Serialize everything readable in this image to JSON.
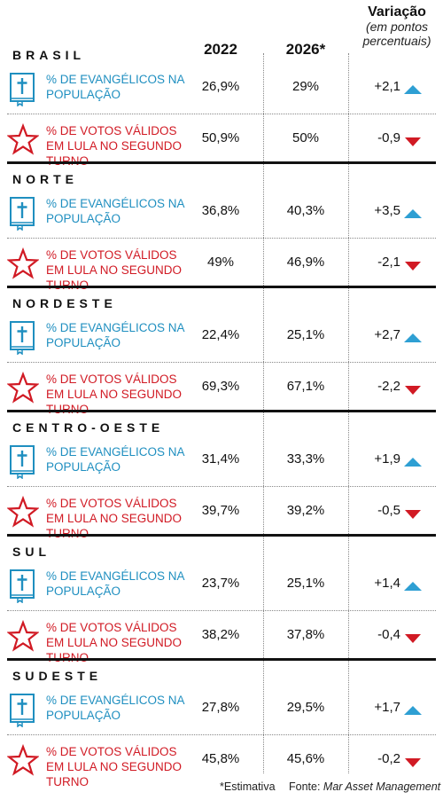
{
  "chart_data": {
    "type": "table",
    "columns": [
      "2022",
      "2026*"
    ],
    "variation_header": {
      "title": "Variação",
      "subtitle": "(em pontos percentuais)"
    },
    "indicators": {
      "evangelicos": "% DE EVANGÉLICOS NA POPULAÇÃO",
      "votos_lula": "% DE VOTOS VÁLIDOS EM LULA NO SEGUNDO TURNO"
    },
    "regions": [
      {
        "name": "BRASIL",
        "evangelicos": {
          "v2022": "26,9%",
          "v2026": "29%",
          "var": "+2,1",
          "dir": "up"
        },
        "votos_lula": {
          "v2022": "50,9%",
          "v2026": "50%",
          "var": "-0,9",
          "dir": "down"
        }
      },
      {
        "name": "NORTE",
        "evangelicos": {
          "v2022": "36,8%",
          "v2026": "40,3%",
          "var": "+3,5",
          "dir": "up"
        },
        "votos_lula": {
          "v2022": "49%",
          "v2026": "46,9%",
          "var": "-2,1",
          "dir": "down"
        }
      },
      {
        "name": "NORDESTE",
        "evangelicos": {
          "v2022": "22,4%",
          "v2026": "25,1%",
          "var": "+2,7",
          "dir": "up"
        },
        "votos_lula": {
          "v2022": "69,3%",
          "v2026": "67,1%",
          "var": "-2,2",
          "dir": "down"
        }
      },
      {
        "name": "CENTRO-OESTE",
        "evangelicos": {
          "v2022": "31,4%",
          "v2026": "33,3%",
          "var": "+1,9",
          "dir": "up"
        },
        "votos_lula": {
          "v2022": "39,7%",
          "v2026": "39,2%",
          "var": "-0,5",
          "dir": "down"
        }
      },
      {
        "name": "SUL",
        "evangelicos": {
          "v2022": "23,7%",
          "v2026": "25,1%",
          "var": "+1,4",
          "dir": "up"
        },
        "votos_lula": {
          "v2022": "38,2%",
          "v2026": "37,8%",
          "var": "-0,4",
          "dir": "down"
        }
      },
      {
        "name": "SUDESTE",
        "evangelicos": {
          "v2022": "27,8%",
          "v2026": "29,5%",
          "var": "+1,7",
          "dir": "up"
        },
        "votos_lula": {
          "v2022": "45,8%",
          "v2026": "45,6%",
          "var": "-0,2",
          "dir": "down"
        }
      }
    ],
    "footnote": "*Estimativa",
    "source_prefix": "Fonte:",
    "source": "Mar Asset Management",
    "colors": {
      "evangelicos": "#1f8fc0",
      "votos_lula": "#d11a24",
      "up_arrow": "#2e9fd3",
      "down_arrow": "#d11a24"
    },
    "icons": {
      "evangelicos": "bible-icon",
      "votos_lula": "star-icon"
    }
  }
}
